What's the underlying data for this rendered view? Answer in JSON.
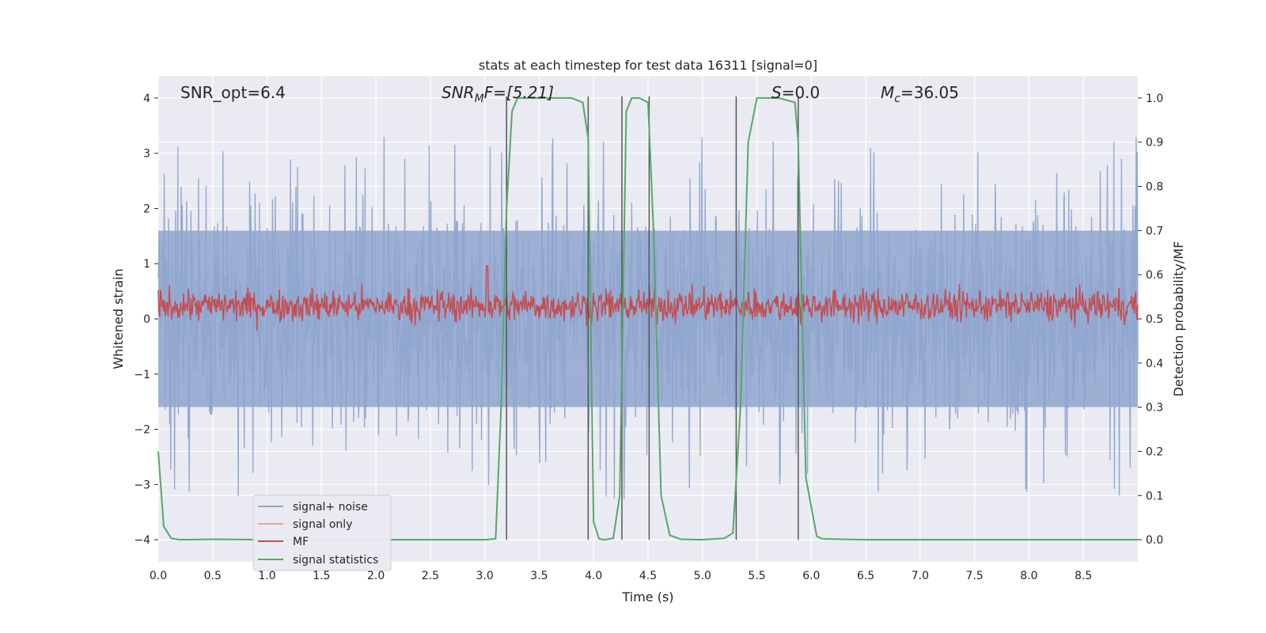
{
  "chart_data": {
    "type": "line",
    "title": "stats at each timestep for test data 16311 [signal=0]",
    "xlabel": "Time (s)",
    "ylabel_left": "Whitened strain",
    "ylabel_right": "Detection probability/MF",
    "xlim": [
      0.0,
      9.0
    ],
    "ylim_left": [
      -4.4,
      4.4
    ],
    "ylim_right": [
      -0.05,
      1.05
    ],
    "x_ticks": [
      "0.0",
      "0.5",
      "1.0",
      "1.5",
      "2.0",
      "2.5",
      "3.0",
      "3.5",
      "4.0",
      "4.5",
      "5.0",
      "5.5",
      "6.0",
      "6.5",
      "7.0",
      "7.5",
      "8.0",
      "8.5"
    ],
    "y_ticks_left": [
      "−4",
      "−3",
      "−2",
      "−1",
      "0",
      "1",
      "2",
      "3",
      "4"
    ],
    "y_ticks_right": [
      "0.0",
      "0.1",
      "0.2",
      "0.3",
      "0.4",
      "0.5",
      "0.6",
      "0.7",
      "0.8",
      "0.9",
      "1.0"
    ],
    "grid": true,
    "legend_position": "lower-left",
    "annotations": {
      "snr_opt": "SNR_opt=6.4",
      "snr_mf_main": "SNR",
      "snr_mf_sub": "M",
      "snr_mf_rest": "F=[5.21]",
      "s_main": "S",
      "s_rest": "=0.0",
      "mc_main": "M",
      "mc_sub": "c",
      "mc_rest": "=36.05"
    },
    "series": [
      {
        "name": "signal+ noise",
        "color": "#8fa6cf",
        "axis": "left",
        "noise_envelope": 1.6,
        "peak_range": [
          -3.9,
          3.3
        ]
      },
      {
        "name": "signal only",
        "color": "#e8a98b",
        "axis": "left",
        "values": []
      },
      {
        "name": "MF",
        "color": "#c44e52",
        "axis": "right",
        "mean": 0.53,
        "spread": 0.03
      },
      {
        "name": "signal statistics",
        "color": "#55a868",
        "axis": "right",
        "x": [
          0.0,
          0.05,
          0.12,
          0.2,
          0.5,
          1.0,
          1.5,
          2.0,
          2.5,
          3.0,
          3.1,
          3.15,
          3.2,
          3.25,
          3.3,
          3.5,
          3.8,
          3.9,
          3.95,
          4.0,
          4.05,
          4.1,
          4.18,
          4.24,
          4.3,
          4.35,
          4.42,
          4.5,
          4.55,
          4.62,
          4.7,
          4.8,
          5.0,
          5.2,
          5.28,
          5.35,
          5.42,
          5.5,
          5.7,
          5.85,
          5.88,
          5.95,
          6.05,
          6.1,
          6.5,
          7.0,
          8.0,
          9.0
        ],
        "values": [
          0.2,
          0.03,
          0.003,
          0.0,
          0.001,
          0.0,
          0.0,
          0.0,
          0.0,
          0.0,
          0.002,
          0.3,
          0.75,
          0.97,
          1.0,
          1.0,
          1.0,
          0.99,
          0.91,
          0.04,
          0.002,
          0.0,
          0.003,
          0.1,
          0.97,
          1.0,
          1.0,
          0.99,
          0.7,
          0.1,
          0.01,
          0.001,
          0.0,
          0.003,
          0.015,
          0.3,
          0.9,
          1.0,
          1.0,
          0.99,
          0.9,
          0.14,
          0.008,
          0.002,
          0.0,
          0.0,
          0.0,
          0.0
        ]
      }
    ],
    "vertical_lines": [
      3.2,
      3.95,
      4.26,
      4.51,
      5.31,
      5.88
    ]
  }
}
